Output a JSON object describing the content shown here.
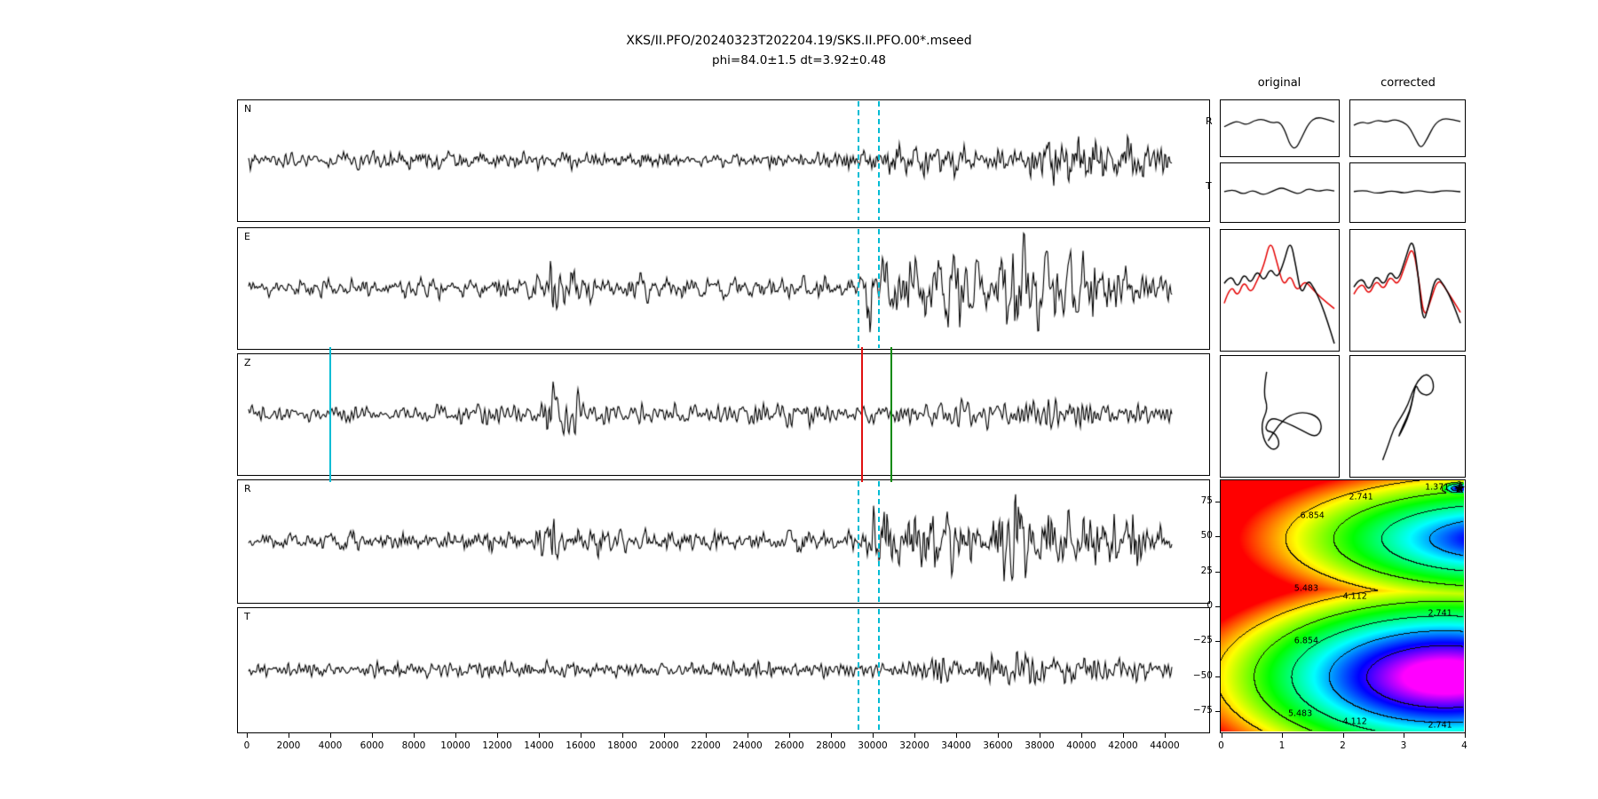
{
  "title": {
    "line1": "XKS/II.PFO/20240323T202204.19/SKS.II.PFO.00*.mseed",
    "line2": "phi=84.0±1.5 dt=3.92±0.48"
  },
  "columns": {
    "original": "original",
    "corrected": "corrected"
  },
  "mini_labels": {
    "r": "R",
    "t": "T"
  },
  "colors": {
    "trace": "#000000",
    "red_series": "#e40000",
    "window_dash": "#00bcd4",
    "marker_cyan": "#00bcd4",
    "marker_red": "#e01010",
    "marker_green": "#0c8a0c"
  },
  "chart_data": {
    "type": "line",
    "figure": "SKS shear-wave splitting diagnostic: N/E/Z/R/T seismograms, analysis window, fast-slow comparison, particle motion and error surface",
    "best_fit": {
      "phi": 84.0,
      "phi_err": 1.5,
      "dt": 3.92,
      "dt_err": 0.48
    },
    "x_axis": {
      "range": [
        0,
        44000
      ],
      "ticks": [
        0,
        2000,
        4000,
        6000,
        8000,
        10000,
        12000,
        14000,
        16000,
        18000,
        20000,
        22000,
        24000,
        26000,
        28000,
        30000,
        32000,
        34000,
        36000,
        38000,
        40000,
        42000,
        44000
      ]
    },
    "dashed_window": [
      29300,
      30300
    ],
    "z_markers": [
      {
        "name": "z-pick-cyan",
        "x": 4000,
        "color": "#00bcd4"
      },
      {
        "name": "z-pick-red",
        "x": 29500,
        "color": "#e01010"
      },
      {
        "name": "z-pick-green",
        "x": 30900,
        "color": "#0c8a0c"
      }
    ],
    "panels": [
      {
        "label": "N",
        "seed": 3,
        "envelope": [
          [
            0,
            9
          ],
          [
            4000,
            9
          ],
          [
            9000,
            8
          ],
          [
            14000,
            10
          ],
          [
            16000,
            9
          ],
          [
            20000,
            8
          ],
          [
            25000,
            9
          ],
          [
            29000,
            8
          ],
          [
            30200,
            10
          ],
          [
            30900,
            20
          ],
          [
            32000,
            17
          ],
          [
            33500,
            24
          ],
          [
            35000,
            16
          ],
          [
            36500,
            13
          ],
          [
            38000,
            26
          ],
          [
            39500,
            22
          ],
          [
            41000,
            20
          ],
          [
            42500,
            22
          ],
          [
            44500,
            12
          ]
        ],
        "window": true
      },
      {
        "label": "E",
        "seed": 7,
        "envelope": [
          [
            0,
            7
          ],
          [
            2000,
            11
          ],
          [
            6000,
            10
          ],
          [
            10000,
            11
          ],
          [
            13500,
            13
          ],
          [
            14600,
            30
          ],
          [
            15600,
            24
          ],
          [
            17000,
            15
          ],
          [
            20000,
            13
          ],
          [
            24000,
            12
          ],
          [
            28000,
            11
          ],
          [
            29200,
            14
          ],
          [
            29800,
            44
          ],
          [
            30600,
            34
          ],
          [
            31800,
            40
          ],
          [
            33000,
            34
          ],
          [
            34500,
            42
          ],
          [
            35800,
            34
          ],
          [
            36800,
            62
          ],
          [
            37600,
            40
          ],
          [
            39000,
            34
          ],
          [
            40500,
            40
          ],
          [
            42000,
            32
          ],
          [
            43200,
            22
          ],
          [
            44500,
            16
          ]
        ],
        "window": true
      },
      {
        "label": "Z",
        "seed": 13,
        "envelope": [
          [
            0,
            8
          ],
          [
            3000,
            10
          ],
          [
            7000,
            9
          ],
          [
            11000,
            9
          ],
          [
            13800,
            11
          ],
          [
            14800,
            40
          ],
          [
            15600,
            26
          ],
          [
            16800,
            14
          ],
          [
            19000,
            12
          ],
          [
            22000,
            11
          ],
          [
            26000,
            12
          ],
          [
            29000,
            12
          ],
          [
            30500,
            13
          ],
          [
            32000,
            13
          ],
          [
            34000,
            15
          ],
          [
            35500,
            17
          ],
          [
            37000,
            14
          ],
          [
            38200,
            21
          ],
          [
            39500,
            17
          ],
          [
            41000,
            13
          ],
          [
            43000,
            11
          ],
          [
            44500,
            9
          ]
        ],
        "window": false
      },
      {
        "label": "R",
        "seed": 21,
        "envelope": [
          [
            0,
            6
          ],
          [
            2500,
            10
          ],
          [
            6000,
            9
          ],
          [
            10000,
            10
          ],
          [
            13500,
            12
          ],
          [
            14600,
            25
          ],
          [
            16000,
            18
          ],
          [
            18000,
            12
          ],
          [
            21000,
            11
          ],
          [
            25000,
            10
          ],
          [
            28500,
            9
          ],
          [
            29500,
            12
          ],
          [
            30000,
            40
          ],
          [
            30700,
            48
          ],
          [
            31800,
            34
          ],
          [
            33200,
            38
          ],
          [
            34600,
            33
          ],
          [
            36000,
            30
          ],
          [
            37000,
            58
          ],
          [
            38000,
            34
          ],
          [
            39500,
            31
          ],
          [
            41000,
            33
          ],
          [
            42500,
            27
          ],
          [
            44000,
            18
          ]
        ],
        "window": true
      },
      {
        "label": "T",
        "seed": 34,
        "envelope": [
          [
            0,
            7
          ],
          [
            5000,
            8
          ],
          [
            10000,
            8
          ],
          [
            15000,
            9
          ],
          [
            20000,
            8
          ],
          [
            25000,
            8
          ],
          [
            29000,
            8
          ],
          [
            30500,
            11
          ],
          [
            32000,
            13
          ],
          [
            33500,
            14
          ],
          [
            35000,
            12
          ],
          [
            36500,
            16
          ],
          [
            38000,
            17
          ],
          [
            39500,
            15
          ],
          [
            41000,
            16
          ],
          [
            42500,
            13
          ],
          [
            44500,
            10
          ]
        ],
        "window": true
      }
    ],
    "minis": {
      "r_original": [
        [
          0,
          0.05
        ],
        [
          0.05,
          0.2
        ],
        [
          0.12,
          0.32
        ],
        [
          0.2,
          0.12
        ],
        [
          0.27,
          0.34
        ],
        [
          0.35,
          0.42
        ],
        [
          0.43,
          0.22
        ],
        [
          0.5,
          0.3
        ],
        [
          0.55,
          -0.1
        ],
        [
          0.6,
          -0.85
        ],
        [
          0.65,
          -1.0
        ],
        [
          0.7,
          -0.5
        ],
        [
          0.77,
          0.25
        ],
        [
          0.84,
          0.5
        ],
        [
          0.92,
          0.42
        ],
        [
          1,
          0.28
        ]
      ],
      "r_corrected": [
        [
          0,
          0.12
        ],
        [
          0.07,
          0.3
        ],
        [
          0.14,
          0.18
        ],
        [
          0.22,
          0.38
        ],
        [
          0.3,
          0.26
        ],
        [
          0.38,
          0.4
        ],
        [
          0.46,
          0.28
        ],
        [
          0.52,
          0.05
        ],
        [
          0.58,
          -0.55
        ],
        [
          0.63,
          -1.0
        ],
        [
          0.69,
          -0.5
        ],
        [
          0.76,
          0.2
        ],
        [
          0.84,
          0.45
        ],
        [
          0.93,
          0.38
        ],
        [
          1,
          0.3
        ]
      ],
      "t_original": [
        [
          0,
          0.02
        ],
        [
          0.08,
          0.15
        ],
        [
          0.17,
          -0.12
        ],
        [
          0.26,
          0.12
        ],
        [
          0.35,
          -0.15
        ],
        [
          0.44,
          0.05
        ],
        [
          0.52,
          0.22
        ],
        [
          0.6,
          0.05
        ],
        [
          0.68,
          -0.1
        ],
        [
          0.76,
          0.18
        ],
        [
          0.85,
          0.02
        ],
        [
          0.93,
          0.12
        ],
        [
          1,
          0.05
        ]
      ],
      "t_corrected": [
        [
          0,
          0.03
        ],
        [
          0.1,
          0.1
        ],
        [
          0.22,
          -0.08
        ],
        [
          0.35,
          0.08
        ],
        [
          0.48,
          -0.06
        ],
        [
          0.6,
          0.1
        ],
        [
          0.72,
          -0.04
        ],
        [
          0.84,
          0.08
        ],
        [
          1,
          0.02
        ]
      ],
      "wf_original_black": [
        [
          0,
          0.12
        ],
        [
          0.06,
          0.3
        ],
        [
          0.12,
          0.02
        ],
        [
          0.18,
          0.32
        ],
        [
          0.24,
          0.1
        ],
        [
          0.3,
          0.38
        ],
        [
          0.36,
          0.14
        ],
        [
          0.42,
          0.42
        ],
        [
          0.48,
          0.2
        ],
        [
          0.54,
          0.5
        ],
        [
          0.6,
          0.95
        ],
        [
          0.65,
          0.45
        ],
        [
          0.7,
          -0.12
        ],
        [
          0.76,
          0.2
        ],
        [
          0.82,
          0.02
        ],
        [
          0.88,
          -0.25
        ],
        [
          0.94,
          -0.6
        ],
        [
          1,
          -1.0
        ]
      ],
      "wf_original_red": [
        [
          0,
          -0.25
        ],
        [
          0.06,
          0.12
        ],
        [
          0.12,
          -0.15
        ],
        [
          0.18,
          0.18
        ],
        [
          0.24,
          -0.08
        ],
        [
          0.3,
          0.18
        ],
        [
          0.36,
          0.45
        ],
        [
          0.42,
          0.95
        ],
        [
          0.48,
          0.5
        ],
        [
          0.54,
          0.05
        ],
        [
          0.6,
          0.3
        ],
        [
          0.66,
          -0.05
        ],
        [
          0.73,
          0.18
        ],
        [
          0.8,
          0.02
        ],
        [
          0.88,
          -0.15
        ],
        [
          1,
          -0.35
        ]
      ],
      "wf_corrected_black": [
        [
          0,
          0.05
        ],
        [
          0.07,
          0.28
        ],
        [
          0.14,
          -0.05
        ],
        [
          0.21,
          0.3
        ],
        [
          0.28,
          0.06
        ],
        [
          0.34,
          0.38
        ],
        [
          0.41,
          0.14
        ],
        [
          0.48,
          0.55
        ],
        [
          0.55,
          1.0
        ],
        [
          0.6,
          0.35
        ],
        [
          0.65,
          -0.65
        ],
        [
          0.7,
          -0.3
        ],
        [
          0.77,
          0.28
        ],
        [
          0.85,
          0.08
        ],
        [
          0.92,
          -0.2
        ],
        [
          1,
          -0.62
        ]
      ],
      "wf_corrected_red": [
        [
          0,
          -0.08
        ],
        [
          0.07,
          0.18
        ],
        [
          0.14,
          -0.12
        ],
        [
          0.21,
          0.2
        ],
        [
          0.28,
          -0.02
        ],
        [
          0.34,
          0.28
        ],
        [
          0.41,
          0.06
        ],
        [
          0.48,
          0.45
        ],
        [
          0.55,
          0.85
        ],
        [
          0.61,
          0.2
        ],
        [
          0.66,
          -0.55
        ],
        [
          0.72,
          -0.2
        ],
        [
          0.79,
          0.22
        ],
        [
          0.87,
          0.0
        ],
        [
          1,
          -0.42
        ]
      ],
      "pm_original": [
        [
          -0.25,
          0.85
        ],
        [
          -0.32,
          0.45
        ],
        [
          -0.22,
          0.15
        ],
        [
          -0.36,
          -0.15
        ],
        [
          -0.3,
          -0.5
        ],
        [
          -0.12,
          -0.68
        ],
        [
          0.02,
          -0.55
        ],
        [
          -0.08,
          -0.32
        ],
        [
          -0.3,
          -0.28
        ],
        [
          -0.18,
          -0.02
        ],
        [
          0.12,
          -0.12
        ],
        [
          0.45,
          -0.28
        ],
        [
          0.72,
          -0.42
        ],
        [
          0.85,
          -0.25
        ],
        [
          0.78,
          -0.02
        ],
        [
          0.5,
          0.08
        ],
        [
          0.2,
          0.02
        ],
        [
          -0.02,
          -0.18
        ],
        [
          -0.22,
          -0.48
        ]
      ],
      "pm_corrected": [
        [
          -0.5,
          -0.85
        ],
        [
          -0.38,
          -0.55
        ],
        [
          -0.28,
          -0.25
        ],
        [
          -0.12,
          -0.02
        ],
        [
          0.02,
          0.22
        ],
        [
          0.1,
          0.45
        ],
        [
          0.22,
          0.68
        ],
        [
          0.38,
          0.82
        ],
        [
          0.52,
          0.72
        ],
        [
          0.55,
          0.5
        ],
        [
          0.42,
          0.38
        ],
        [
          0.25,
          0.45
        ],
        [
          0.18,
          0.62
        ],
        [
          0.12,
          0.35
        ],
        [
          0.06,
          0.08
        ],
        [
          -0.06,
          -0.2
        ],
        [
          -0.2,
          -0.45
        ],
        [
          -0.08,
          -0.18
        ],
        [
          0.06,
          0.1
        ],
        [
          0.12,
          0.38
        ]
      ]
    },
    "error_surface": {
      "x_range": [
        0,
        4
      ],
      "y_range": [
        -90,
        90
      ],
      "x_ticks": [
        0,
        1,
        2,
        3,
        4
      ],
      "y_ticks": [
        75,
        50,
        25,
        0,
        -25,
        -50,
        -75
      ],
      "y_tick_labels": [
        "75",
        "50",
        "25",
        "0",
        "−25",
        "−50",
        "−75"
      ],
      "contour_levels": [
        1.371,
        2.741,
        4.112,
        5.483,
        6.854
      ],
      "star": {
        "x": 3.92,
        "y": 84
      },
      "contour_labels": [
        {
          "text": "2.741",
          "x": 2.3,
          "y": 78
        },
        {
          "text": "1.371",
          "x": 3.55,
          "y": 85
        },
        {
          "text": "6.854",
          "x": 1.5,
          "y": 65
        },
        {
          "text": "5.483",
          "x": 1.4,
          "y": 13
        },
        {
          "text": "4.112",
          "x": 2.2,
          "y": 7
        },
        {
          "text": "2.741",
          "x": 3.6,
          "y": -5
        },
        {
          "text": "6.854",
          "x": 1.4,
          "y": -25
        },
        {
          "text": "5.483",
          "x": 1.3,
          "y": -77
        },
        {
          "text": "4.112",
          "x": 2.2,
          "y": -83
        },
        {
          "text": "2.741",
          "x": 3.6,
          "y": -85
        }
      ],
      "surface_model": {
        "emax": 8.2,
        "emin": 0.05,
        "hue_max_deg": 300,
        "lobes": [
          {
            "cx": 4.5,
            "cy": 48,
            "sx": 4.6,
            "sy": 60,
            "floor": 0.9,
            "slope": 8
          },
          {
            "cx": 3.7,
            "cy": -51,
            "sx": 3.6,
            "sy": 62,
            "floor": -1.5,
            "slope": 8
          },
          {
            "cx": 3.92,
            "cy": 84,
            "sx": 0.5,
            "sy": 8,
            "floor": 0.5,
            "slope": 9
          }
        ]
      }
    }
  }
}
